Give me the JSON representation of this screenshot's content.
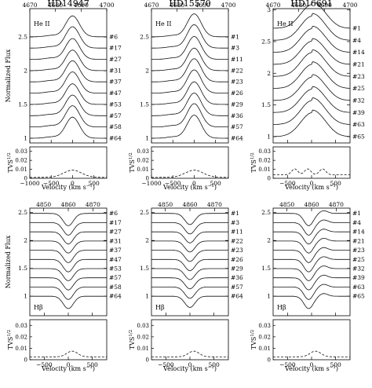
{
  "chart_data": [
    {
      "type": "line",
      "title": "HD14947",
      "line": "He II",
      "wavelength_ticks": [
        "4670",
        "4680",
        "4690",
        "4700"
      ],
      "x_ticks": [
        "−1000",
        "−500",
        "0",
        "500"
      ],
      "y_ticks": [
        "1",
        "1.5",
        "2",
        "2.5"
      ],
      "tvs_ticks": [
        "0",
        "0.01",
        "0.02",
        "0.03"
      ],
      "ylabel": "Normalized Flux",
      "tvs_label": "TVS",
      "tvs_exponent": "1/2",
      "xlabel": "Velocity (km s",
      "xlabel_exponent": "−1",
      "xlabel_end": ")",
      "spectra": [
        "#6",
        "#17",
        "#27",
        "#31",
        "#37",
        "#47",
        "#53",
        "#57",
        "#58",
        "#64"
      ],
      "profile": "emission",
      "xlim": [
        -1000,
        800
      ],
      "ylim": [
        0.93,
        2.92
      ],
      "offset": 0.167,
      "amplitude": 0.31
    },
    {
      "type": "line",
      "title": "HD15570",
      "line": "He II",
      "wavelength_ticks": [
        "4670",
        "4680",
        "4690",
        "4700"
      ],
      "x_ticks": [
        "−1000",
        "−500",
        "0",
        "500"
      ],
      "y_ticks": [
        "1",
        "1.5",
        "2",
        "2.5"
      ],
      "tvs_ticks": [
        "0",
        "0.01",
        "0.02",
        "0.03"
      ],
      "ylabel": "",
      "tvs_label": "TVS",
      "tvs_exponent": "1/2",
      "xlabel": "Velocity (km s",
      "xlabel_exponent": "−1",
      "xlabel_end": ")",
      "spectra": [
        "#1",
        "#3",
        "#11",
        "#22",
        "#23",
        "#26",
        "#29",
        "#36",
        "#57",
        "#64"
      ],
      "profile": "emission",
      "xlim": [
        -1000,
        800
      ],
      "ylim": [
        0.93,
        2.92
      ],
      "offset": 0.167,
      "amplitude": 0.34
    },
    {
      "type": "line",
      "title": "HD16691",
      "line": "He II",
      "wavelength_ticks": [
        "4670",
        "4680",
        "4690",
        "4700"
      ],
      "x_ticks": [
        "−500",
        "0",
        "500"
      ],
      "y_ticks": [
        "1",
        "1.5",
        "2",
        "2.5",
        "3"
      ],
      "tvs_ticks": [
        "0",
        "0.01",
        "0.02",
        "0.03"
      ],
      "ylabel": "",
      "tvs_label": "TVS",
      "tvs_exponent": "1/2",
      "xlabel": "Velocity (km s",
      "xlabel_exponent": "−1",
      "xlabel_end": ")",
      "spectra": [
        "#1",
        "#4",
        "#14",
        "#21",
        "#23",
        "#25",
        "#32",
        "#39",
        "#63",
        "#65"
      ],
      "profile": "emission-broad",
      "xlim": [
        -800,
        800
      ],
      "ylim": [
        0.9,
        3.02
      ],
      "offset": 0.19,
      "amplitude": 0.38
    },
    {
      "type": "line",
      "title": "",
      "line": "Hβ",
      "wavelength_ticks": [
        "4850",
        "4860",
        "4870"
      ],
      "x_ticks": [
        "−500",
        "0",
        "500"
      ],
      "y_ticks": [
        "1",
        "1.5",
        "2",
        "2.5"
      ],
      "tvs_ticks": [
        "0",
        "0.01",
        "0.02",
        "0.03"
      ],
      "ylabel": "Normalized Flux",
      "tvs_label": "TVS",
      "tvs_exponent": "1/2",
      "xlabel": "Velocity (km s",
      "xlabel_exponent": "−1",
      "xlabel_end": ")",
      "spectra": [
        "#6",
        "#17",
        "#27",
        "#31",
        "#37",
        "#47",
        "#53",
        "#57",
        "#58",
        "#64"
      ],
      "profile": "absorption",
      "xlim": [
        -800,
        800
      ],
      "ylim": [
        0.65,
        2.58
      ],
      "offset": 0.165,
      "amplitude": 0.22
    },
    {
      "type": "line",
      "title": "",
      "line": "Hβ",
      "wavelength_ticks": [
        "4850",
        "4860",
        "4870"
      ],
      "x_ticks": [
        "−500",
        "0",
        "500"
      ],
      "y_ticks": [
        "1",
        "1.5",
        "2",
        "2.5"
      ],
      "tvs_ticks": [
        "0",
        "0.01",
        "0.02",
        "0.03"
      ],
      "ylabel": "",
      "tvs_label": "TVS",
      "tvs_exponent": "1/2",
      "xlabel": "Velocity (km s",
      "xlabel_exponent": "−1",
      "xlabel_end": ")",
      "spectra": [
        "#1",
        "#3",
        "#11",
        "#22",
        "#23",
        "#26",
        "#29",
        "#36",
        "#57",
        "#64"
      ],
      "profile": "absorption",
      "xlim": [
        -800,
        800
      ],
      "ylim": [
        0.65,
        2.58
      ],
      "offset": 0.165,
      "amplitude": 0.2
    },
    {
      "type": "line",
      "title": "",
      "line": "Hβ",
      "wavelength_ticks": [
        "4850",
        "4860",
        "4870"
      ],
      "x_ticks": [
        "−500",
        "0",
        "500"
      ],
      "y_ticks": [
        "1",
        "1.5",
        "2",
        "2.5"
      ],
      "tvs_ticks": [
        "0",
        "0.01",
        "0.02",
        "0.03"
      ],
      "ylabel": "",
      "tvs_label": "TVS",
      "tvs_exponent": "1/2",
      "xlabel": "Velocity (km s",
      "xlabel_exponent": "−1",
      "xlabel_end": ")",
      "spectra": [
        "#1",
        "#4",
        "#14",
        "#21",
        "#23",
        "#25",
        "#32",
        "#39",
        "#63",
        "#65"
      ],
      "profile": "pcygni",
      "xlim": [
        -800,
        800
      ],
      "ylim": [
        0.65,
        2.58
      ],
      "offset": 0.165,
      "amplitude": 0.22
    }
  ]
}
